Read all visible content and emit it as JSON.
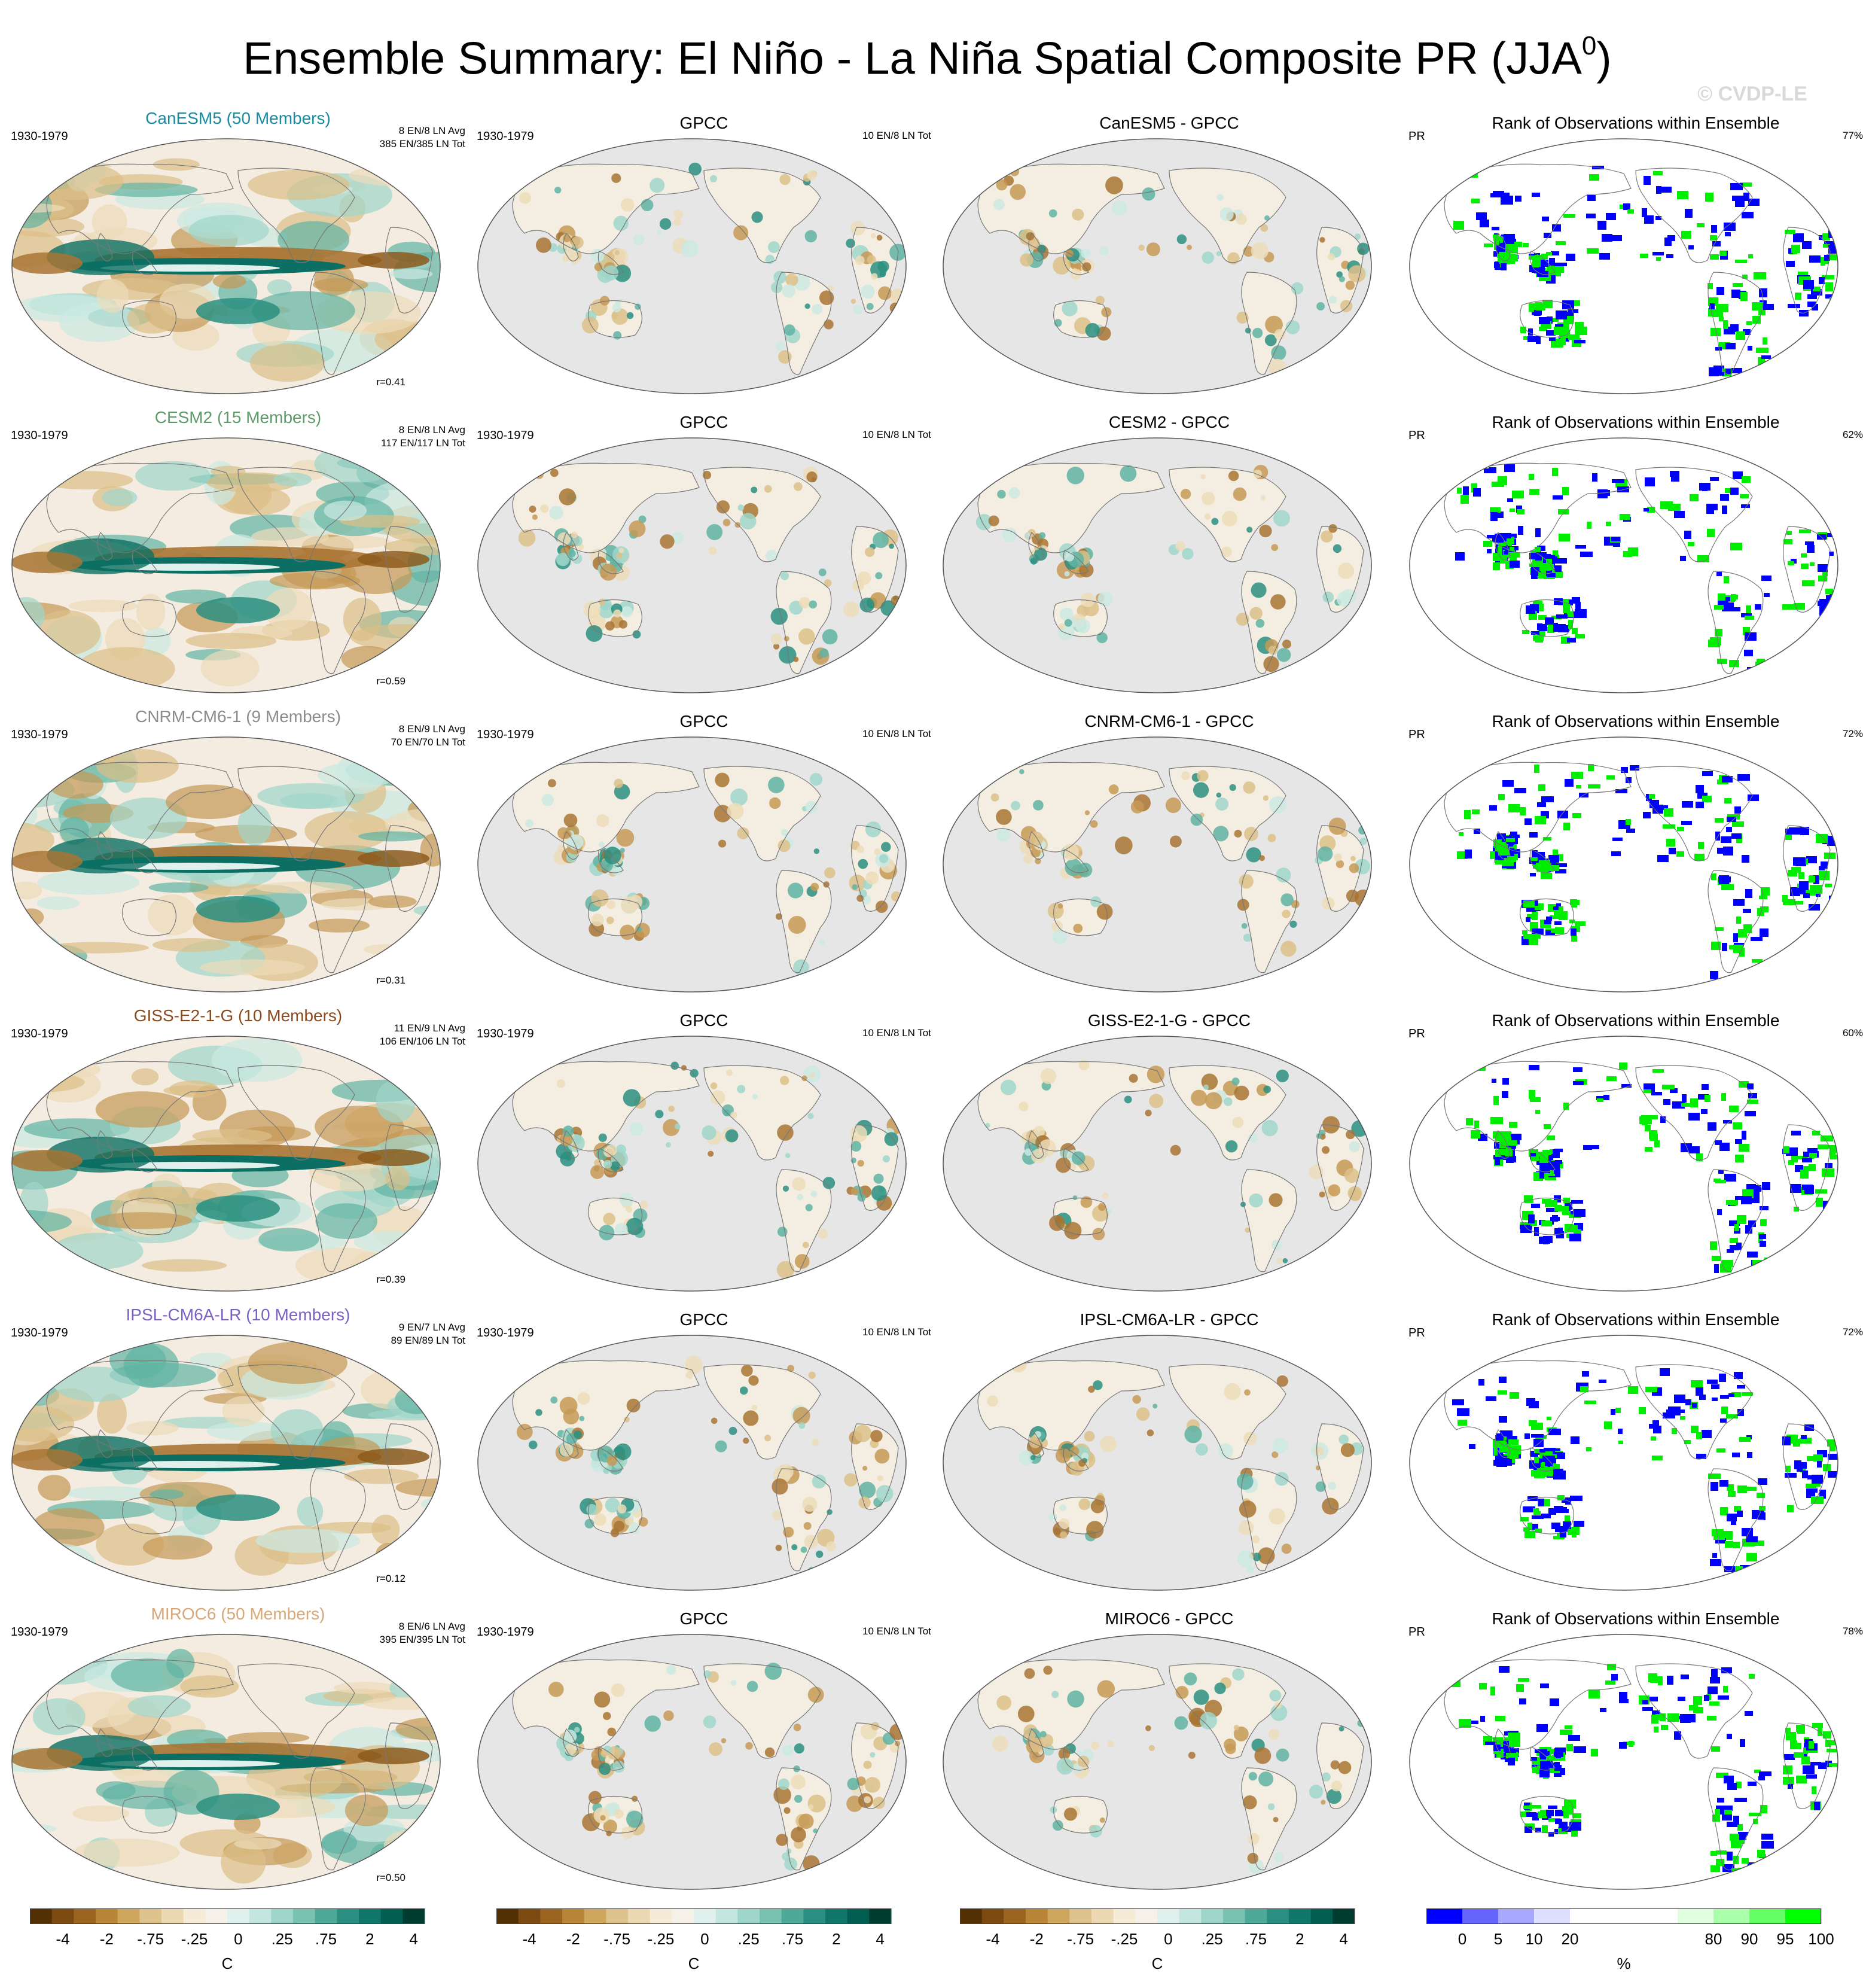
{
  "figure": {
    "title": "Ensemble Summary: El Niño - La Niña Spatial Composite PR (JJA",
    "title_sup": "0",
    "title_close": ")",
    "watermark": "© CVDP-LE"
  },
  "rows": [
    {
      "model_title": "CanESM5 (50 Members)",
      "model_color": "#1a8aa0",
      "period": "1930-1979",
      "model_stat1": "8 EN/8 LN Avg",
      "model_stat2": "385 EN/385 LN Tot",
      "corr": "r=0.41",
      "obs_title": "GPCC",
      "obs_period": "1930-1979",
      "obs_stat": "10 EN/8 LN Tot",
      "diff_title": "CanESM5 - GPCC",
      "rank_title": "Rank of Observations within Ensemble",
      "rank_var": "PR",
      "rank_pct": "77%"
    },
    {
      "model_title": "CESM2 (15 Members)",
      "model_color": "#5e9a6a",
      "period": "1930-1979",
      "model_stat1": "8 EN/8 LN Avg",
      "model_stat2": "117 EN/117 LN Tot",
      "corr": "r=0.59",
      "obs_title": "GPCC",
      "obs_period": "1930-1979",
      "obs_stat": "10 EN/8 LN Tot",
      "diff_title": "CESM2 - GPCC",
      "rank_title": "Rank of Observations within Ensemble",
      "rank_var": "PR",
      "rank_pct": "62%"
    },
    {
      "model_title": "CNRM-CM6-1 (9 Members)",
      "model_color": "#8c8c8c",
      "period": "1930-1979",
      "model_stat1": "8 EN/9 LN Avg",
      "model_stat2": "70 EN/70 LN Tot",
      "corr": "r=0.31",
      "obs_title": "GPCC",
      "obs_period": "1930-1979",
      "obs_stat": "10 EN/8 LN Tot",
      "diff_title": "CNRM-CM6-1 - GPCC",
      "rank_title": "Rank of Observations within Ensemble",
      "rank_var": "PR",
      "rank_pct": "72%"
    },
    {
      "model_title": "GISS-E2-1-G (10 Members)",
      "model_color": "#8a4a1e",
      "period": "1930-1979",
      "model_stat1": "11 EN/9 LN Avg",
      "model_stat2": "106 EN/106 LN Tot",
      "corr": "r=0.39",
      "obs_title": "GPCC",
      "obs_period": "1930-1979",
      "obs_stat": "10 EN/8 LN Tot",
      "diff_title": "GISS-E2-1-G - GPCC",
      "rank_title": "Rank of Observations within Ensemble",
      "rank_var": "PR",
      "rank_pct": "60%"
    },
    {
      "model_title": "IPSL-CM6A-LR (10 Members)",
      "model_color": "#7a62c2",
      "period": "1930-1979",
      "model_stat1": "9 EN/7 LN Avg",
      "model_stat2": "89 EN/89 LN Tot",
      "corr": "r=0.12",
      "obs_title": "GPCC",
      "obs_period": "1930-1979",
      "obs_stat": "10 EN/8 LN Tot",
      "diff_title": "IPSL-CM6A-LR - GPCC",
      "rank_title": "Rank of Observations within Ensemble",
      "rank_var": "PR",
      "rank_pct": "72%"
    },
    {
      "model_title": "MIROC6 (50 Members)",
      "model_color": "#d8a878",
      "period": "1930-1979",
      "model_stat1": "8 EN/6 LN Avg",
      "model_stat2": "395 EN/395 LN Tot",
      "corr": "r=0.50",
      "obs_title": "GPCC",
      "obs_period": "1930-1979",
      "obs_stat": "10 EN/8 LN Tot",
      "diff_title": "MIROC6 - GPCC",
      "rank_title": "Rank of Observations within Ensemble",
      "rank_var": "PR",
      "rank_pct": "78%"
    }
  ],
  "colorbars": {
    "anomaly": {
      "units": "C",
      "labels": [
        "-4",
        "-2",
        "-.75",
        "-.25",
        "0",
        ".25",
        ".75",
        "2",
        "4"
      ],
      "colors": [
        "#543005",
        "#7a4a10",
        "#9c6421",
        "#b98536",
        "#cfa65e",
        "#dfc38c",
        "#ecd9b4",
        "#f5ebd6",
        "#f6f1e8",
        "#e0f0ec",
        "#c3e6df",
        "#9fd6ca",
        "#79c2b1",
        "#4fa999",
        "#2a8f80",
        "#10766a",
        "#035e52",
        "#003c30"
      ]
    },
    "rank": {
      "units": "%",
      "labels": [
        "0",
        "5",
        "10",
        "20",
        "80",
        "90",
        "95",
        "100"
      ],
      "colors": [
        "#0000ff",
        "#6666ff",
        "#a8a8ff",
        "#dedeff",
        "#ffffff",
        "#ffffff",
        "#ffffff",
        "#dfffdf",
        "#aaffaa",
        "#66ff66",
        "#00ff00"
      ]
    }
  }
}
